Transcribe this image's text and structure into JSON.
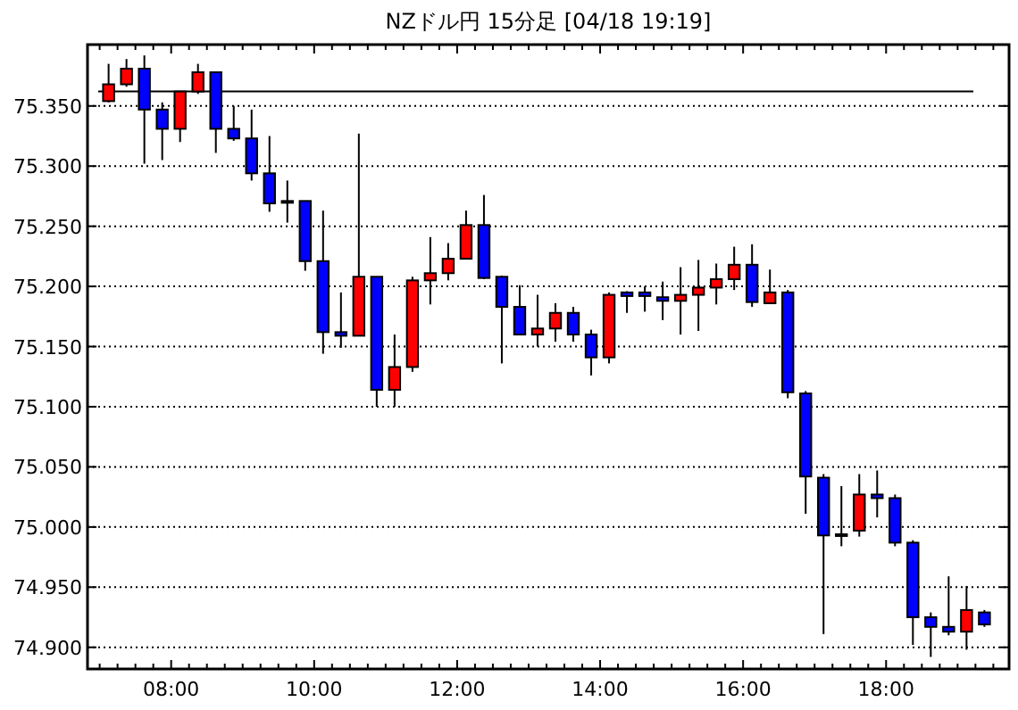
{
  "chart_data": {
    "type": "candlestick",
    "title": "NZドル円 15分足 [04/18 19:19]",
    "x": [
      7.125,
      7.375,
      7.625,
      7.875,
      8.125,
      8.375,
      8.625,
      8.875,
      9.125,
      9.375,
      9.625,
      9.875,
      10.125,
      10.375,
      10.625,
      10.875,
      11.125,
      11.375,
      11.625,
      11.875,
      12.125,
      12.375,
      12.625,
      12.875,
      13.125,
      13.375,
      13.625,
      13.875,
      14.125,
      14.375,
      14.625,
      14.875,
      15.125,
      15.375,
      15.625,
      15.875,
      16.125,
      16.375,
      16.625,
      16.875,
      17.125,
      17.375,
      17.625,
      17.875,
      18.125,
      18.375,
      18.625,
      18.875,
      19.125,
      19.375
    ],
    "ohlc": [
      [
        75.354,
        75.385,
        75.353,
        75.368
      ],
      [
        75.368,
        75.389,
        75.366,
        75.381
      ],
      [
        75.381,
        75.392,
        75.302,
        75.347
      ],
      [
        75.347,
        75.353,
        75.305,
        75.331
      ],
      [
        75.331,
        75.362,
        75.32,
        75.362
      ],
      [
        75.362,
        75.385,
        75.36,
        75.378
      ],
      [
        75.378,
        75.378,
        75.311,
        75.331
      ],
      [
        75.331,
        75.35,
        75.321,
        75.323
      ],
      [
        75.323,
        75.347,
        75.288,
        75.294
      ],
      [
        75.294,
        75.325,
        75.262,
        75.269
      ],
      [
        75.271,
        75.288,
        75.253,
        75.27
      ],
      [
        75.271,
        75.271,
        75.213,
        75.221
      ],
      [
        75.221,
        75.263,
        75.144,
        75.162
      ],
      [
        75.162,
        75.195,
        75.149,
        75.159
      ],
      [
        75.159,
        75.327,
        75.159,
        75.208
      ],
      [
        75.208,
        75.208,
        75.1,
        75.114
      ],
      [
        75.114,
        75.16,
        75.1,
        75.133
      ],
      [
        75.133,
        75.208,
        75.129,
        75.205
      ],
      [
        75.205,
        75.241,
        75.185,
        75.211
      ],
      [
        75.211,
        75.236,
        75.205,
        75.223
      ],
      [
        75.223,
        75.263,
        75.223,
        75.251
      ],
      [
        75.251,
        75.276,
        75.206,
        75.207
      ],
      [
        75.208,
        75.209,
        75.136,
        75.183
      ],
      [
        75.183,
        75.201,
        75.16,
        75.16
      ],
      [
        75.16,
        75.193,
        75.15,
        75.165
      ],
      [
        75.165,
        75.186,
        75.154,
        75.178
      ],
      [
        75.178,
        75.183,
        75.154,
        75.16
      ],
      [
        75.16,
        75.164,
        75.126,
        75.141
      ],
      [
        75.141,
        75.195,
        75.136,
        75.193
      ],
      [
        75.195,
        75.196,
        75.178,
        75.192
      ],
      [
        75.195,
        75.2,
        75.179,
        75.192
      ],
      [
        75.191,
        75.204,
        75.172,
        75.188
      ],
      [
        75.188,
        75.216,
        75.16,
        75.193
      ],
      [
        75.193,
        75.222,
        75.163,
        75.199
      ],
      [
        75.199,
        75.219,
        75.185,
        75.206
      ],
      [
        75.206,
        75.233,
        75.197,
        75.218
      ],
      [
        75.218,
        75.235,
        75.183,
        75.187
      ],
      [
        75.186,
        75.214,
        75.186,
        75.195
      ],
      [
        75.195,
        75.197,
        75.107,
        75.112
      ],
      [
        75.111,
        75.113,
        75.011,
        75.042
      ],
      [
        75.041,
        75.044,
        74.911,
        74.993
      ],
      [
        74.994,
        75.034,
        74.984,
        74.993
      ],
      [
        74.997,
        75.044,
        74.992,
        75.027
      ],
      [
        75.027,
        75.047,
        75.008,
        75.024
      ],
      [
        75.024,
        75.027,
        74.984,
        74.987
      ],
      [
        74.987,
        74.989,
        74.902,
        74.925
      ],
      [
        74.925,
        74.929,
        74.892,
        74.917
      ],
      [
        74.917,
        74.959,
        74.91,
        74.913
      ],
      [
        74.913,
        74.951,
        74.898,
        74.931
      ],
      [
        74.929,
        74.931,
        74.917,
        74.919
      ]
    ],
    "colors": [
      "#ff0000",
      "#ff0000",
      "#0000ff",
      "#0000ff",
      "#ff0000",
      "#ff0000",
      "#0000ff",
      "#0000ff",
      "#0000ff",
      "#0000ff",
      "#0000ff",
      "#0000ff",
      "#0000ff",
      "#0000ff",
      "#ff0000",
      "#0000ff",
      "#ff0000",
      "#ff0000",
      "#ff0000",
      "#ff0000",
      "#ff0000",
      "#0000ff",
      "#0000ff",
      "#0000ff",
      "#ff0000",
      "#ff0000",
      "#0000ff",
      "#0000ff",
      "#ff0000",
      "#0000ff",
      "#0000ff",
      "#0000ff",
      "#ff0000",
      "#ff0000",
      "#ff0000",
      "#ff0000",
      "#0000ff",
      "#ff0000",
      "#0000ff",
      "#0000ff",
      "#0000ff",
      "#0000ff",
      "#ff0000",
      "#0000ff",
      "#0000ff",
      "#0000ff",
      "#0000ff",
      "#0000ff",
      "#ff0000",
      "#0000ff"
    ],
    "xlim": [
      6.83,
      19.72
    ],
    "xticks": [
      {
        "value": 7,
        "label": null
      },
      {
        "value": 7.25,
        "label": null
      },
      {
        "value": 7.5,
        "label": null
      },
      {
        "value": 7.75,
        "label": null
      },
      {
        "value": 8,
        "label": "08:00"
      },
      {
        "value": 8.25,
        "label": null
      },
      {
        "value": 8.5,
        "label": null
      },
      {
        "value": 8.75,
        "label": null
      },
      {
        "value": 9,
        "label": null
      },
      {
        "value": 9.25,
        "label": null
      },
      {
        "value": 9.5,
        "label": null
      },
      {
        "value": 9.75,
        "label": null
      },
      {
        "value": 10,
        "label": "10:00"
      },
      {
        "value": 10.25,
        "label": null
      },
      {
        "value": 10.5,
        "label": null
      },
      {
        "value": 10.75,
        "label": null
      },
      {
        "value": 11,
        "label": null
      },
      {
        "value": 11.25,
        "label": null
      },
      {
        "value": 11.5,
        "label": null
      },
      {
        "value": 11.75,
        "label": null
      },
      {
        "value": 12,
        "label": "12:00"
      },
      {
        "value": 12.25,
        "label": null
      },
      {
        "value": 12.5,
        "label": null
      },
      {
        "value": 12.75,
        "label": null
      },
      {
        "value": 13,
        "label": null
      },
      {
        "value": 13.25,
        "label": null
      },
      {
        "value": 13.5,
        "label": null
      },
      {
        "value": 13.75,
        "label": null
      },
      {
        "value": 14,
        "label": "14:00"
      },
      {
        "value": 14.25,
        "label": null
      },
      {
        "value": 14.5,
        "label": null
      },
      {
        "value": 14.75,
        "label": null
      },
      {
        "value": 15,
        "label": null
      },
      {
        "value": 15.25,
        "label": null
      },
      {
        "value": 15.5,
        "label": null
      },
      {
        "value": 15.75,
        "label": null
      },
      {
        "value": 16,
        "label": "16:00"
      },
      {
        "value": 16.25,
        "label": null
      },
      {
        "value": 16.5,
        "label": null
      },
      {
        "value": 16.75,
        "label": null
      },
      {
        "value": 17,
        "label": null
      },
      {
        "value": 17.25,
        "label": null
      },
      {
        "value": 17.5,
        "label": null
      },
      {
        "value": 17.75,
        "label": null
      },
      {
        "value": 18,
        "label": "18:00"
      },
      {
        "value": 18.25,
        "label": null
      },
      {
        "value": 18.5,
        "label": null
      },
      {
        "value": 18.75,
        "label": null
      },
      {
        "value": 19,
        "label": null
      },
      {
        "value": 19.25,
        "label": null
      },
      {
        "value": 19.5,
        "label": null
      }
    ],
    "ylim": [
      74.882,
      75.401
    ],
    "yticks": [
      {
        "value": 74.9,
        "label": "74.900"
      },
      {
        "value": 74.95,
        "label": "74.950"
      },
      {
        "value": 75,
        "label": "75.000"
      },
      {
        "value": 75.05,
        "label": "75.050"
      },
      {
        "value": 75.1,
        "label": "75.100"
      },
      {
        "value": 75.15,
        "label": "75.150"
      },
      {
        "value": 75.2,
        "label": "75.200"
      },
      {
        "value": 75.25,
        "label": "75.250"
      },
      {
        "value": 75.3,
        "label": "75.300"
      },
      {
        "value": 75.35,
        "label": "75.350"
      }
    ],
    "grid": "y",
    "ref_lines": [
      {
        "axis": "y",
        "value": 75.362,
        "color": "#000000"
      }
    ]
  }
}
